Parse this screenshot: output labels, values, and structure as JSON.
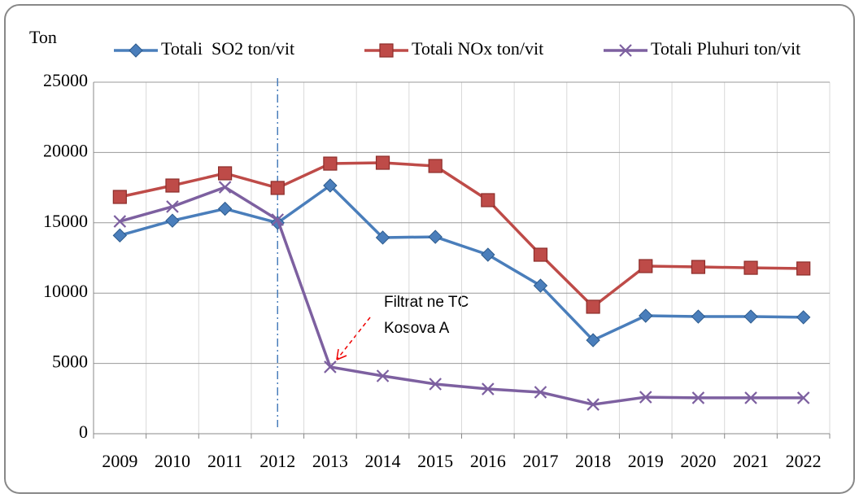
{
  "chart_data": {
    "type": "line",
    "y_label": "Ton",
    "categories": [
      "2009",
      "2010",
      "2011",
      "2012",
      "2013",
      "2014",
      "2015",
      "2016",
      "2017",
      "2018",
      "2019",
      "2020",
      "2021",
      "2022"
    ],
    "series": [
      {
        "name": "Totali  SO2 ton/vit",
        "color": "#4a7ebb",
        "marker": "diamond",
        "values": [
          14100,
          15150,
          16000,
          15000,
          17650,
          13950,
          14000,
          12730,
          10530,
          6650,
          8390,
          8330,
          8330,
          8280
        ]
      },
      {
        "name": "Totali NOx ton/vit",
        "color": "#be4b48",
        "marker": "square",
        "values": [
          16840,
          17650,
          18520,
          17480,
          19210,
          19270,
          19040,
          16610,
          12730,
          9030,
          11920,
          11860,
          11800,
          11750
        ]
      },
      {
        "name": "Totali Pluhuri ton/vit",
        "color": "#7d60a0",
        "marker": "x",
        "values": [
          15100,
          16150,
          17530,
          15220,
          4750,
          4110,
          3530,
          3180,
          2950,
          2080,
          2600,
          2550,
          2550,
          2550
        ]
      }
    ],
    "ylim": [
      0,
      25000
    ],
    "yticks": [
      0,
      5000,
      10000,
      15000,
      20000,
      25000
    ],
    "grid": true,
    "vline": {
      "category": "2012",
      "color": "#4a7ebb"
    },
    "annotation": [
      "Filtrat ne TC",
      "Kosova A"
    ]
  }
}
